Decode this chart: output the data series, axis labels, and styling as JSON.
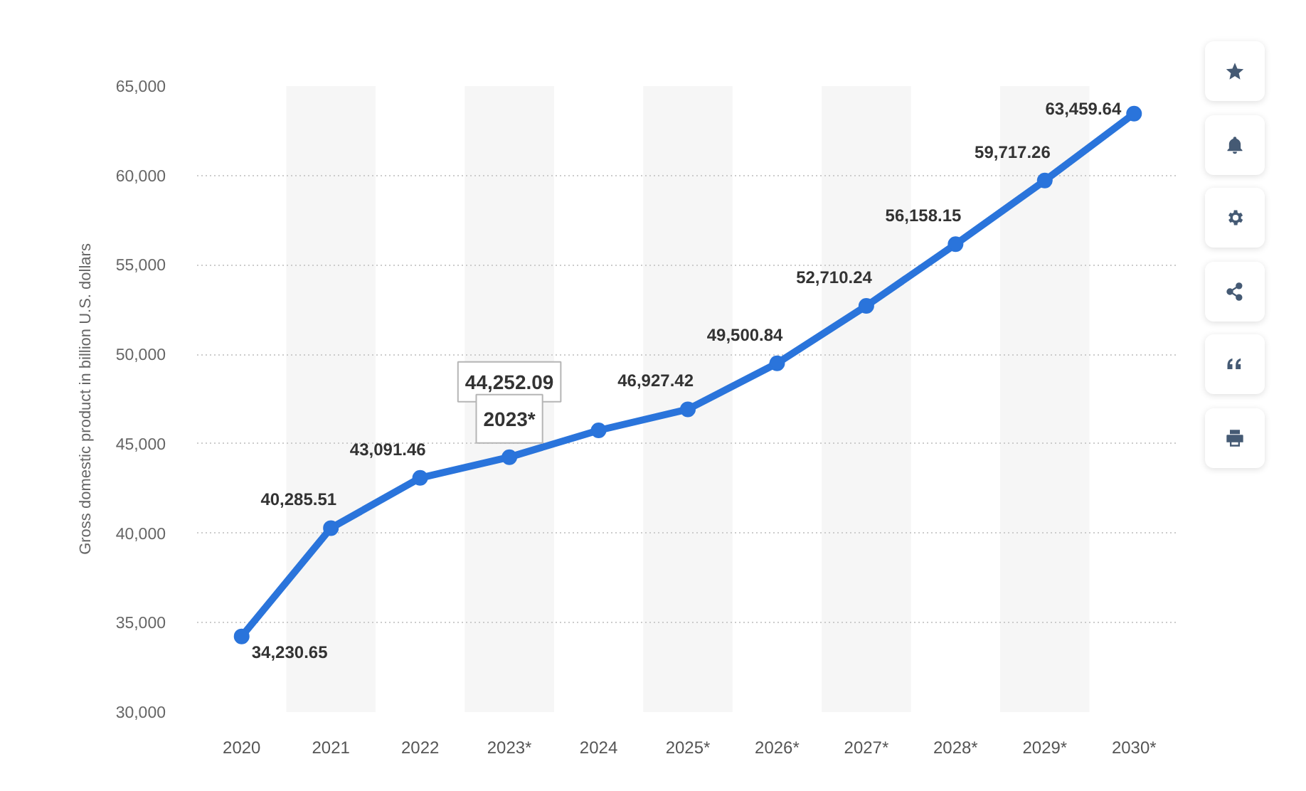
{
  "chart_data": {
    "type": "line",
    "ylabel": "Gross domestic product in billion U.S. dollars",
    "categories": [
      "2020",
      "2021",
      "2022",
      "2023*",
      "2024",
      "2025*",
      "2026*",
      "2027*",
      "2028*",
      "2029*",
      "2030*"
    ],
    "series": [
      {
        "color": "#2a74db",
        "values": [
          34230.65,
          40285.51,
          43091.46,
          44252.09,
          45750,
          46927.42,
          49500.84,
          52710.24,
          56158.15,
          59717.26,
          63459.64
        ],
        "value_labels": [
          "34,230.65",
          "40,285.51",
          "43,091.46",
          "44,252.09",
          null,
          "46,927.42",
          "49,500.84",
          "52,710.24",
          "56,158.15",
          "59,717.26",
          "63,459.64"
        ]
      }
    ],
    "ylim": [
      30000,
      65000
    ],
    "yticks": [
      {
        "value": 30000,
        "label": "30,000"
      },
      {
        "value": 35000,
        "label": "35,000"
      },
      {
        "value": 40000,
        "label": "40,000"
      },
      {
        "value": 45000,
        "label": "45,000"
      },
      {
        "value": 50000,
        "label": "50,000"
      },
      {
        "value": 55000,
        "label": "55,000"
      },
      {
        "value": 60000,
        "label": "60,000"
      },
      {
        "value": 65000,
        "label": "65,000"
      }
    ],
    "grid": "y",
    "marker": "circle",
    "line_style": "solid",
    "bands": [
      {
        "axis": "x",
        "from": "2021",
        "to": "2021",
        "color": "#f6f6f6"
      },
      {
        "axis": "x",
        "from": "2023*",
        "to": "2023*",
        "color": "#f6f6f6"
      },
      {
        "axis": "x",
        "from": "2025*",
        "to": "2025*",
        "color": "#f6f6f6"
      },
      {
        "axis": "x",
        "from": "2027*",
        "to": "2027*",
        "color": "#f6f6f6"
      },
      {
        "axis": "x",
        "from": "2029*",
        "to": "2029*",
        "color": "#f6f6f6"
      }
    ],
    "annotations": [
      {
        "text": "2023*",
        "x": "2023*",
        "y": 44252.09
      }
    ]
  }
}
